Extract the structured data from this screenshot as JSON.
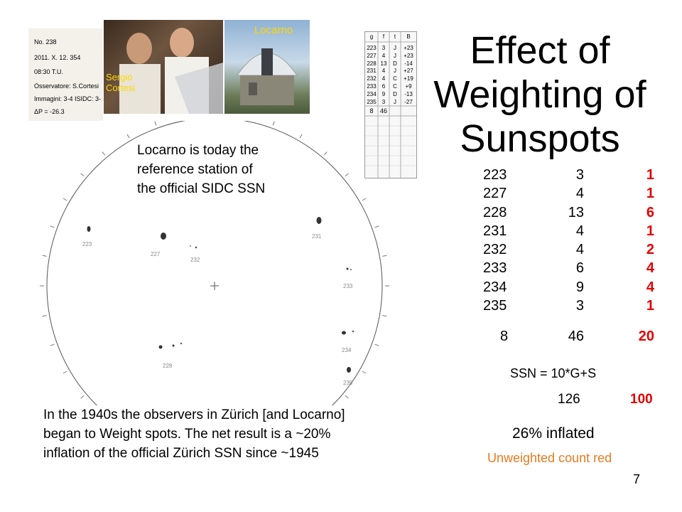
{
  "title": [
    "Effect of",
    "Weighting of",
    "Sunspots"
  ],
  "photo_labels": {
    "people": [
      "Sergio",
      "Cortesi"
    ],
    "observatory": "Locarno"
  },
  "notebook": {
    "lines": [
      "No. 238",
      "2011. X. 12. 354",
      "08:30  T.U.",
      "Osservatore: S.Cortesi",
      "Immagini: 3-4  ISIDC: 3-",
      "ΔP = -26.3"
    ]
  },
  "observation_sheet": {
    "headers": [
      "g",
      "f",
      "t",
      "B"
    ],
    "rows": [
      [
        "223",
        "3",
        "J",
        "+23"
      ],
      [
        "227",
        "4",
        "J",
        "+23"
      ],
      [
        "228",
        "13",
        "D",
        "-14"
      ],
      [
        "231",
        "4",
        "J",
        "+27"
      ],
      [
        "232",
        "4",
        "C",
        "+19"
      ],
      [
        "233",
        "6",
        "C",
        "+9"
      ],
      [
        "234",
        "9",
        "D",
        "-13"
      ],
      [
        "235",
        "3",
        "J",
        "-27"
      ]
    ],
    "total": [
      "8",
      "46"
    ]
  },
  "drawing_labels": [
    "223",
    "227",
    "232",
    "231",
    "233",
    "228",
    "234",
    "235"
  ],
  "note_top": [
    "Locarno is today the",
    "reference station of",
    "the official SIDC SSN"
  ],
  "note_bottom": [
    "In the 1940s the observers in Zürich [and Locarno]",
    "began to Weight spots. The net result is a ~20%",
    "inflation of the official Zürich SSN since ~1945"
  ],
  "table": {
    "rows": [
      [
        "223",
        "3",
        "1"
      ],
      [
        "227",
        "4",
        "1"
      ],
      [
        "228",
        "13",
        "6"
      ],
      [
        "231",
        "4",
        "1"
      ],
      [
        "232",
        "4",
        "2"
      ],
      [
        "233",
        "6",
        "4"
      ],
      [
        "234",
        "9",
        "4"
      ],
      [
        "235",
        "3",
        "1"
      ]
    ],
    "totals": [
      "8",
      "46",
      "20"
    ]
  },
  "formula": "SSN = 10*G+S",
  "ssn_values": [
    "126",
    "100"
  ],
  "inflated": "26% inflated",
  "legend": "Unweighted count red",
  "page_number": "7",
  "colors": {
    "red": "#e60000",
    "orange": "#e87a1e",
    "label_yellow": "#ffd700"
  }
}
